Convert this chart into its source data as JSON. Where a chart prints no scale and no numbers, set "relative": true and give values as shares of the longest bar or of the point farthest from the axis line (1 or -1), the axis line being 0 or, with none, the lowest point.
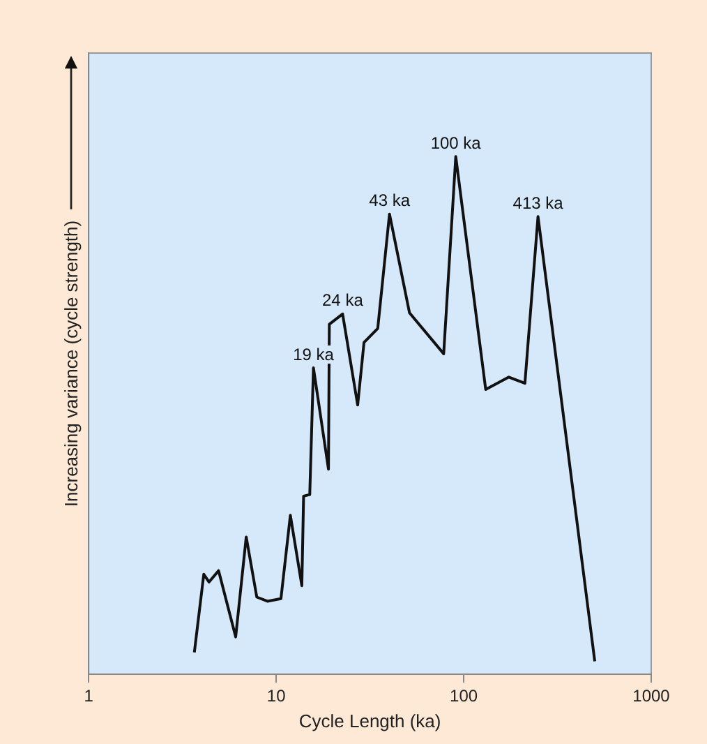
{
  "chart_data": {
    "type": "line",
    "xlabel": "Cycle Length (ka)",
    "ylabel": "Increasing variance (cycle strength)",
    "log": "x",
    "relative": true,
    "xlim": [
      1,
      1000
    ],
    "xticks": [
      1,
      10,
      100,
      1000
    ],
    "grid": false,
    "legend": false,
    "marker": "none",
    "line_style": "solid",
    "x": [
      3.66,
      4.11,
      4.38,
      4.93,
      6.08,
      6.92,
      7.88,
      8.98,
      10.6,
      11.9,
      13.7,
      14.0,
      15.1,
      15.8,
      19.0,
      19.2,
      22.6,
      27.2,
      29.4,
      34.8,
      40.2,
      51.4,
      78.2,
      90.7,
      131,
      174,
      212,
      249,
      500
    ],
    "series": [
      {
        "color": "#111111",
        "values": [
          0.042,
          0.193,
          0.178,
          0.2,
          0.072,
          0.265,
          0.149,
          0.141,
          0.146,
          0.307,
          0.171,
          0.344,
          0.347,
          0.592,
          0.396,
          0.676,
          0.696,
          0.52,
          0.641,
          0.668,
          0.889,
          0.698,
          0.619,
          1,
          0.55,
          0.574,
          0.562,
          0.884,
          0.025
        ]
      }
    ],
    "annotations": [
      {
        "text": "19 ka",
        "x": 15.8,
        "y": 0.592
      },
      {
        "text": "24 ka",
        "x": 22.6,
        "y": 0.696
      },
      {
        "text": "43 ka",
        "x": 40.2,
        "y": 0.889
      },
      {
        "text": "100 ka",
        "x": 90.7,
        "y": 1
      },
      {
        "text": "413 ka",
        "x": 249,
        "y": 0.884
      }
    ]
  }
}
